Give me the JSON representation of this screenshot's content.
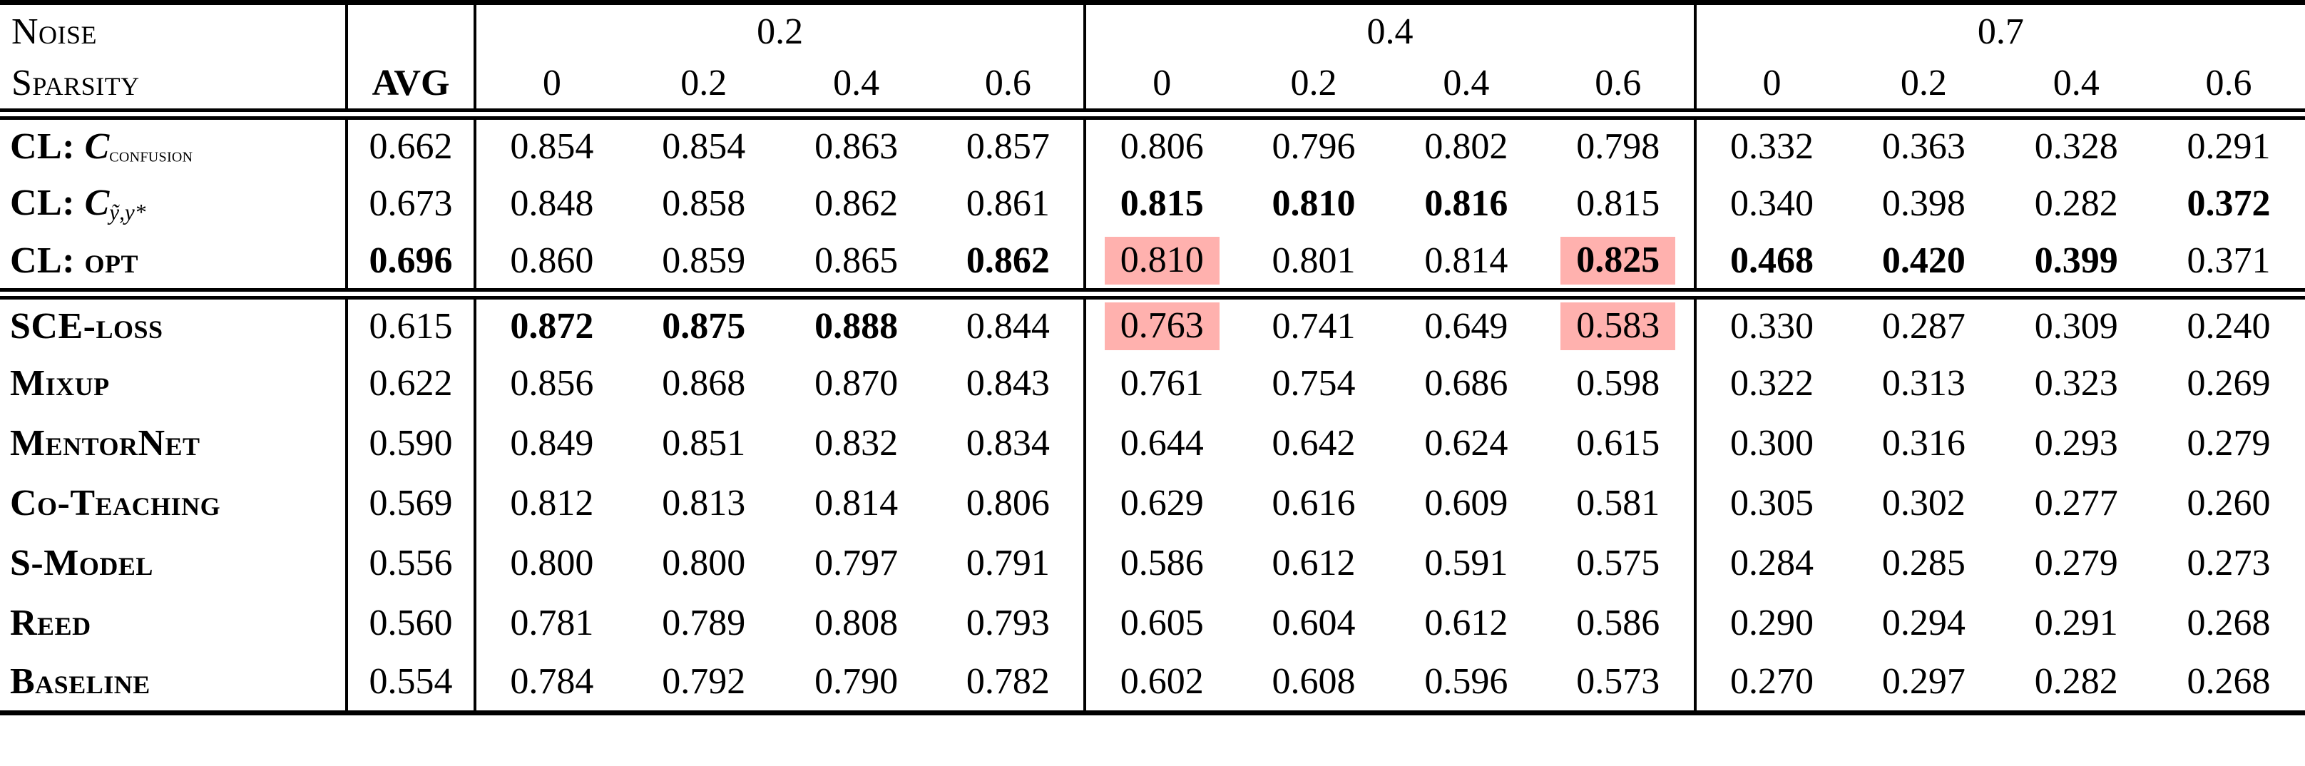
{
  "colors": {
    "highlight": "#ffb1ae",
    "text": "#000000",
    "background": "#ffffff"
  },
  "header": {
    "noise_label": "Noise",
    "sparsity_label": "Sparsity",
    "avg_label": "AVG"
  },
  "table": {
    "noise_groups": [
      {
        "noise": "0.2",
        "sparsities": [
          "0",
          "0.2",
          "0.4",
          "0.6"
        ]
      },
      {
        "noise": "0.4",
        "sparsities": [
          "0",
          "0.2",
          "0.4",
          "0.6"
        ]
      },
      {
        "noise": "0.7",
        "sparsities": [
          "0",
          "0.2",
          "0.4",
          "0.6"
        ]
      }
    ],
    "cl_rows": [
      {
        "label": [
          {
            "t": "CL: ",
            "s": "sc"
          },
          {
            "t": "C",
            "s": "mvar"
          },
          {
            "t": "confusion",
            "s": "msubsc"
          }
        ],
        "avg": {
          "v": "0.662"
        },
        "cells": [
          {
            "v": "0.854"
          },
          {
            "v": "0.854"
          },
          {
            "v": "0.863"
          },
          {
            "v": "0.857"
          },
          {
            "v": "0.806"
          },
          {
            "v": "0.796"
          },
          {
            "v": "0.802"
          },
          {
            "v": "0.798"
          },
          {
            "v": "0.332"
          },
          {
            "v": "0.363"
          },
          {
            "v": "0.328"
          },
          {
            "v": "0.291"
          }
        ]
      },
      {
        "label": [
          {
            "t": "CL: ",
            "s": "sc"
          },
          {
            "t": "C",
            "s": "mvar"
          },
          {
            "t": "ỹ,y*",
            "s": "msub"
          }
        ],
        "avg": {
          "v": "0.673"
        },
        "cells": [
          {
            "v": "0.848"
          },
          {
            "v": "0.858"
          },
          {
            "v": "0.862"
          },
          {
            "v": "0.861"
          },
          {
            "v": "0.815",
            "b": true
          },
          {
            "v": "0.810",
            "b": true
          },
          {
            "v": "0.816",
            "b": true
          },
          {
            "v": "0.815"
          },
          {
            "v": "0.340"
          },
          {
            "v": "0.398"
          },
          {
            "v": "0.282"
          },
          {
            "v": "0.372",
            "b": true
          }
        ]
      },
      {
        "label": [
          {
            "t": "CL: opt",
            "s": "sc"
          }
        ],
        "avg": {
          "v": "0.696",
          "b": true
        },
        "cells": [
          {
            "v": "0.860"
          },
          {
            "v": "0.859"
          },
          {
            "v": "0.865"
          },
          {
            "v": "0.862",
            "b": true
          },
          {
            "v": "0.810",
            "h": true
          },
          {
            "v": "0.801"
          },
          {
            "v": "0.814"
          },
          {
            "v": "0.825",
            "b": true,
            "h": true
          },
          {
            "v": "0.468",
            "b": true
          },
          {
            "v": "0.420",
            "b": true
          },
          {
            "v": "0.399",
            "b": true
          },
          {
            "v": "0.371"
          }
        ]
      }
    ],
    "baseline_rows": [
      {
        "label": [
          {
            "t": "SCE-loss",
            "s": "sc"
          }
        ],
        "avg": {
          "v": "0.615"
        },
        "cells": [
          {
            "v": "0.872",
            "b": true
          },
          {
            "v": "0.875",
            "b": true
          },
          {
            "v": "0.888",
            "b": true
          },
          {
            "v": "0.844"
          },
          {
            "v": "0.763",
            "h": true
          },
          {
            "v": "0.741"
          },
          {
            "v": "0.649"
          },
          {
            "v": "0.583",
            "h": true
          },
          {
            "v": "0.330"
          },
          {
            "v": "0.287"
          },
          {
            "v": "0.309"
          },
          {
            "v": "0.240"
          }
        ]
      },
      {
        "label": [
          {
            "t": "Mixup",
            "s": "sc"
          }
        ],
        "avg": {
          "v": "0.622"
        },
        "cells": [
          {
            "v": "0.856"
          },
          {
            "v": "0.868"
          },
          {
            "v": "0.870"
          },
          {
            "v": "0.843"
          },
          {
            "v": "0.761"
          },
          {
            "v": "0.754"
          },
          {
            "v": "0.686"
          },
          {
            "v": "0.598"
          },
          {
            "v": "0.322"
          },
          {
            "v": "0.313"
          },
          {
            "v": "0.323"
          },
          {
            "v": "0.269"
          }
        ]
      },
      {
        "label": [
          {
            "t": "MentorNet",
            "s": "sc"
          }
        ],
        "avg": {
          "v": "0.590"
        },
        "cells": [
          {
            "v": "0.849"
          },
          {
            "v": "0.851"
          },
          {
            "v": "0.832"
          },
          {
            "v": "0.834"
          },
          {
            "v": "0.644"
          },
          {
            "v": "0.642"
          },
          {
            "v": "0.624"
          },
          {
            "v": "0.615"
          },
          {
            "v": "0.300"
          },
          {
            "v": "0.316"
          },
          {
            "v": "0.293"
          },
          {
            "v": "0.279"
          }
        ]
      },
      {
        "label": [
          {
            "t": "Co-Teaching",
            "s": "sc"
          }
        ],
        "avg": {
          "v": "0.569"
        },
        "cells": [
          {
            "v": "0.812"
          },
          {
            "v": "0.813"
          },
          {
            "v": "0.814"
          },
          {
            "v": "0.806"
          },
          {
            "v": "0.629"
          },
          {
            "v": "0.616"
          },
          {
            "v": "0.609"
          },
          {
            "v": "0.581"
          },
          {
            "v": "0.305"
          },
          {
            "v": "0.302"
          },
          {
            "v": "0.277"
          },
          {
            "v": "0.260"
          }
        ]
      },
      {
        "label": [
          {
            "t": "S-Model",
            "s": "sc"
          }
        ],
        "avg": {
          "v": "0.556"
        },
        "cells": [
          {
            "v": "0.800"
          },
          {
            "v": "0.800"
          },
          {
            "v": "0.797"
          },
          {
            "v": "0.791"
          },
          {
            "v": "0.586"
          },
          {
            "v": "0.612"
          },
          {
            "v": "0.591"
          },
          {
            "v": "0.575"
          },
          {
            "v": "0.284"
          },
          {
            "v": "0.285"
          },
          {
            "v": "0.279"
          },
          {
            "v": "0.273"
          }
        ]
      },
      {
        "label": [
          {
            "t": "Reed",
            "s": "sc"
          }
        ],
        "avg": {
          "v": "0.560"
        },
        "cells": [
          {
            "v": "0.781"
          },
          {
            "v": "0.789"
          },
          {
            "v": "0.808"
          },
          {
            "v": "0.793"
          },
          {
            "v": "0.605"
          },
          {
            "v": "0.604"
          },
          {
            "v": "0.612"
          },
          {
            "v": "0.586"
          },
          {
            "v": "0.290"
          },
          {
            "v": "0.294"
          },
          {
            "v": "0.291"
          },
          {
            "v": "0.268"
          }
        ]
      },
      {
        "label": [
          {
            "t": "Baseline",
            "s": "sc"
          }
        ],
        "avg": {
          "v": "0.554"
        },
        "cells": [
          {
            "v": "0.784"
          },
          {
            "v": "0.792"
          },
          {
            "v": "0.790"
          },
          {
            "v": "0.782"
          },
          {
            "v": "0.602"
          },
          {
            "v": "0.608"
          },
          {
            "v": "0.596"
          },
          {
            "v": "0.573"
          },
          {
            "v": "0.270"
          },
          {
            "v": "0.297"
          },
          {
            "v": "0.282"
          },
          {
            "v": "0.268"
          }
        ]
      }
    ]
  }
}
